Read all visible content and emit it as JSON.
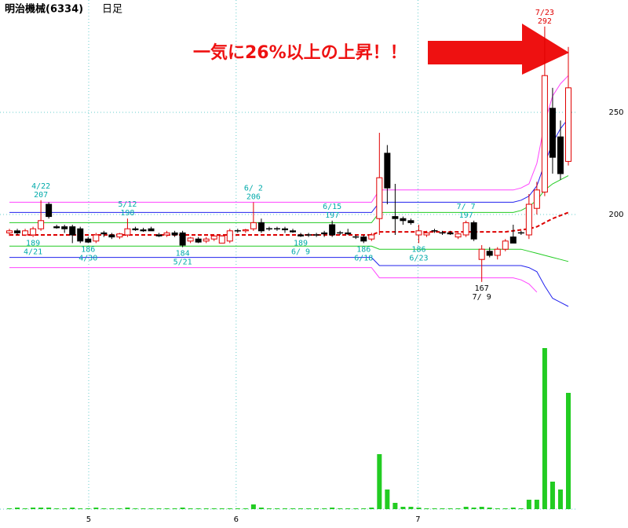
{
  "chart_data": {
    "type": "candlestick",
    "title": "明治機械(6334)",
    "subtitle": "日足",
    "headline": "一気に26%以上の上昇！！",
    "ylim": [
      150,
      305
    ],
    "yticks": [
      200,
      250
    ],
    "vlim": [
      0,
      230
    ],
    "xticks": [
      {
        "value": 10.07,
        "label": "5"
      },
      {
        "value": 28.8,
        "label": "6"
      },
      {
        "value": 51.9,
        "label": "7"
      }
    ],
    "up_color": "#e00000",
    "down_color": "#000000",
    "volume_color": "#22cc22",
    "open": [
      191,
      192,
      190,
      190,
      193,
      205,
      194,
      194,
      194,
      193,
      188,
      187,
      191,
      190,
      189,
      190,
      193,
      192.5,
      193,
      190,
      190,
      191,
      191,
      187,
      188,
      187,
      188,
      186,
      187,
      192,
      192,
      193,
      196,
      193,
      193,
      193,
      192,
      190,
      190,
      190,
      191,
      195,
      191,
      191,
      189,
      189,
      188,
      198,
      230,
      199,
      198,
      197,
      190,
      190,
      192,
      191,
      191,
      189,
      190,
      196,
      178,
      182,
      180,
      183,
      189,
      191,
      190,
      203,
      211,
      252,
      238,
      226
    ],
    "high": [
      193,
      193,
      193,
      194,
      207,
      206,
      195,
      195,
      195,
      194,
      189,
      191,
      192,
      191,
      191,
      198,
      194,
      193.5,
      194,
      191,
      192,
      192,
      192,
      189,
      189,
      189,
      190,
      190,
      193,
      193,
      193,
      206,
      198,
      194,
      194,
      194,
      193,
      191,
      191,
      191,
      192,
      197,
      192,
      193,
      190,
      190,
      191,
      240,
      234,
      215,
      199,
      198,
      195,
      192,
      193,
      192,
      192,
      191,
      197,
      197,
      185,
      184,
      184,
      188,
      195,
      192,
      210,
      216,
      292,
      262,
      246,
      282
    ],
    "low": [
      189.5,
      190,
      189.5,
      189,
      192,
      198,
      193,
      191,
      186,
      186,
      186,
      186,
      189,
      188,
      188,
      189,
      192,
      191.5,
      192,
      189,
      189,
      189,
      184,
      186,
      186,
      186,
      187,
      186,
      186,
      191,
      191,
      192,
      191,
      192,
      192,
      191,
      191,
      189,
      189,
      189,
      189,
      189,
      190,
      190,
      188,
      186,
      187,
      190,
      205,
      190,
      195,
      195,
      186,
      189,
      191,
      190,
      190,
      188,
      189,
      187,
      167,
      179,
      178,
      182,
      186,
      190,
      188,
      200,
      209,
      220,
      217,
      224
    ],
    "close": [
      192,
      191,
      192,
      193,
      197,
      199,
      193.5,
      193,
      190,
      187,
      186.5,
      190,
      190.5,
      189,
      190.5,
      193,
      192.5,
      192,
      192,
      189.5,
      191,
      190,
      185,
      188.5,
      186.5,
      188,
      189.5,
      189.5,
      192,
      192,
      192.5,
      196,
      192,
      193,
      193,
      192.5,
      191.5,
      189.5,
      190,
      190,
      190.5,
      190,
      191,
      190.5,
      189,
      187,
      190,
      218,
      213,
      198,
      197,
      196,
      192,
      191,
      192,
      191,
      190.5,
      190.5,
      196,
      188,
      183,
      180,
      183,
      187,
      186,
      191,
      205,
      212,
      268,
      228,
      220,
      262
    ],
    "volume": [
      1,
      2,
      1,
      2,
      2,
      2,
      1,
      1,
      2,
      1,
      1,
      2,
      1,
      1,
      1,
      2,
      1,
      1,
      1,
      1,
      1,
      1,
      2,
      1,
      1,
      1,
      1,
      1,
      1,
      1,
      1,
      6,
      2,
      1,
      1,
      1,
      1,
      1,
      1,
      1,
      1,
      2,
      1,
      1,
      1,
      1,
      2,
      70,
      25,
      8,
      3,
      3,
      2,
      1,
      1,
      1,
      1,
      1,
      3,
      2,
      3,
      2,
      1,
      1,
      2,
      1,
      12,
      12,
      205,
      35,
      25,
      148
    ],
    "series": [
      {
        "color": "#ff44ff",
        "dash": false,
        "values": [
          206,
          206,
          206,
          206,
          206,
          206,
          206,
          206,
          206,
          206,
          206,
          206,
          206,
          206,
          206,
          206,
          206,
          206,
          206,
          206,
          206,
          206,
          206,
          206,
          206,
          206,
          206,
          206,
          206,
          206,
          206,
          206,
          206,
          206,
          206,
          206,
          206,
          206,
          206,
          206,
          206,
          206,
          206,
          206,
          206,
          206,
          206,
          212,
          212,
          212,
          212,
          212,
          212,
          212,
          212,
          212,
          212,
          212,
          212,
          212,
          212,
          212,
          212,
          212,
          212,
          213,
          215,
          225,
          245,
          258,
          264,
          268
        ]
      },
      {
        "color": "#2222ee",
        "dash": false,
        "values": [
          201,
          201,
          201,
          201,
          201,
          201,
          201,
          201,
          201,
          201,
          201,
          201,
          201,
          201,
          201,
          201,
          201,
          201,
          201,
          201,
          201,
          201,
          201,
          201,
          201,
          201,
          201,
          201,
          201,
          201,
          201,
          201,
          201,
          201,
          201,
          201,
          201,
          201,
          201,
          201,
          201,
          201,
          201,
          201,
          201,
          201,
          201,
          206,
          206,
          206,
          206,
          206,
          206,
          206,
          206,
          206,
          206,
          206,
          206,
          206,
          206,
          206,
          206,
          206,
          206,
          207,
          209,
          214,
          225,
          235,
          242,
          247
        ]
      },
      {
        "color": "#22cc22",
        "dash": false,
        "values": [
          196,
          196,
          196,
          196,
          196,
          196,
          196,
          196,
          196,
          196,
          196,
          196,
          196,
          196,
          196,
          196,
          196,
          196,
          196,
          196,
          196,
          196,
          196,
          196,
          196,
          196,
          196,
          196,
          196,
          196,
          196,
          196,
          196,
          196,
          196,
          196,
          196,
          196,
          196,
          196,
          196,
          196,
          196,
          196,
          196,
          196,
          196,
          201,
          201,
          201,
          201,
          201,
          201,
          201,
          201,
          201,
          201,
          201,
          201,
          201,
          201,
          201,
          201,
          201,
          201,
          202,
          204,
          207,
          212,
          215,
          217,
          219
        ]
      },
      {
        "color": "#dd0000",
        "dash": true,
        "values": [
          190,
          190,
          190,
          190,
          190,
          190,
          190,
          190,
          190,
          190,
          190,
          190,
          190,
          190,
          190,
          190,
          190,
          190,
          190,
          190,
          190,
          190,
          190,
          190,
          190,
          190,
          190,
          190,
          190,
          190,
          190,
          190,
          190,
          190,
          190,
          190,
          190,
          190,
          190,
          190,
          190,
          190,
          190,
          190,
          190,
          190,
          190,
          191.5,
          191.5,
          191.5,
          191.5,
          191.5,
          191.5,
          191.5,
          191.5,
          191.5,
          191.5,
          191.5,
          191.5,
          191.5,
          191.5,
          191.5,
          191.5,
          191.5,
          192,
          192.5,
          193,
          194,
          196,
          198,
          199.5,
          201
        ]
      },
      {
        "color": "#22cc22",
        "dash": false,
        "values": [
          184.5,
          184.5,
          184.5,
          184.5,
          184.5,
          184.5,
          184.5,
          184.5,
          184.5,
          184.5,
          184.5,
          184.5,
          184.5,
          184.5,
          184.5,
          184.5,
          184.5,
          184.5,
          184.5,
          184.5,
          184.5,
          184.5,
          184.5,
          184.5,
          184.5,
          184.5,
          184.5,
          184.5,
          184.5,
          184.5,
          184.5,
          184.5,
          184.5,
          184.5,
          184.5,
          184.5,
          184.5,
          184.5,
          184.5,
          184.5,
          184.5,
          184.5,
          184.5,
          184.5,
          184.5,
          184.5,
          184.5,
          183,
          183,
          183,
          183,
          183,
          183,
          183,
          183,
          183,
          183,
          183,
          183,
          183,
          183,
          183,
          183,
          183,
          183,
          183,
          182,
          181,
          180,
          179,
          178,
          177
        ]
      },
      {
        "color": "#2222ee",
        "dash": false,
        "values": [
          179,
          179,
          179,
          179,
          179,
          179,
          179,
          179,
          179,
          179,
          179,
          179,
          179,
          179,
          179,
          179,
          179,
          179,
          179,
          179,
          179,
          179,
          179,
          179,
          179,
          179,
          179,
          179,
          179,
          179,
          179,
          179,
          179,
          179,
          179,
          179,
          179,
          179,
          179,
          179,
          179,
          179,
          179,
          179,
          179,
          179,
          179,
          175,
          175,
          175,
          175,
          175,
          175,
          175,
          175,
          175,
          175,
          175,
          175,
          175,
          175,
          175,
          175,
          175,
          175,
          175,
          174,
          172,
          165,
          159,
          157,
          155
        ]
      },
      {
        "color": "#ff44ff",
        "dash": false,
        "values": [
          174,
          174,
          174,
          174,
          174,
          174,
          174,
          174,
          174,
          174,
          174,
          174,
          174,
          174,
          174,
          174,
          174,
          174,
          174,
          174,
          174,
          174,
          174,
          174,
          174,
          174,
          174,
          174,
          174,
          174,
          174,
          174,
          174,
          174,
          174,
          174,
          174,
          174,
          174,
          174,
          174,
          174,
          174,
          174,
          174,
          174,
          174,
          169,
          169,
          169,
          169,
          169,
          169,
          169,
          169,
          169,
          169,
          169,
          169,
          169,
          169,
          169,
          169,
          169,
          169,
          168,
          166,
          162,
          null,
          null,
          null,
          null
        ]
      }
    ],
    "annotations": [
      {
        "index": 3,
        "kind": "low",
        "date": "4/21",
        "price": 189,
        "color": "#00aaaa"
      },
      {
        "index": 4,
        "kind": "high",
        "date": "4/22",
        "price": 207,
        "color": "#00aaaa"
      },
      {
        "index": 10,
        "kind": "low",
        "date": "4/30",
        "price": 186,
        "color": "#00aaaa"
      },
      {
        "index": 15,
        "kind": "high",
        "date": "5/12",
        "price": 198,
        "color": "#00aaaa"
      },
      {
        "index": 22,
        "kind": "low",
        "date": "5/21",
        "price": 184,
        "color": "#00aaaa"
      },
      {
        "index": 31,
        "kind": "high",
        "date": "6/ 2",
        "price": 206,
        "color": "#00aaaa"
      },
      {
        "index": 37,
        "kind": "low",
        "date": "6/ 9",
        "price": 189,
        "color": "#00aaaa"
      },
      {
        "index": 41,
        "kind": "high",
        "date": "6/15",
        "price": 197,
        "color": "#00aaaa"
      },
      {
        "index": 45,
        "kind": "low",
        "date": "6/18",
        "price": 186,
        "color": "#00aaaa"
      },
      {
        "index": 52,
        "kind": "low",
        "date": "6/23",
        "price": 186,
        "color": "#00aaaa"
      },
      {
        "index": 58,
        "kind": "high",
        "date": "7/ 7",
        "price": 197,
        "color": "#00aaaa"
      },
      {
        "index": 60,
        "kind": "low",
        "date": "7/ 9",
        "price": 167,
        "color": "#000000"
      },
      {
        "index": 68,
        "kind": "high",
        "date": "7/23",
        "price": 292,
        "color": "#e00000"
      }
    ]
  }
}
